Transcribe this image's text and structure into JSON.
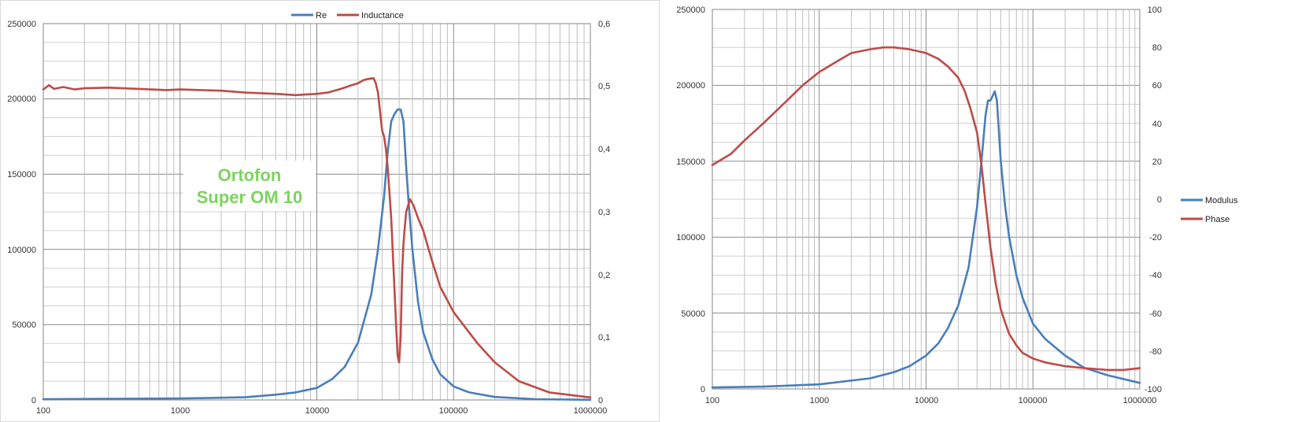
{
  "colors": {
    "re": "#4a7ebb",
    "inductance": "#be4b48",
    "modulus": "#4a7ebb",
    "phase": "#be4b48"
  },
  "chart_data": [
    {
      "type": "line",
      "x_scale": "log",
      "xlim": [
        100,
        1000000
      ],
      "ylim": [
        0,
        250000
      ],
      "y2lim": [
        0,
        0.6
      ],
      "grid": true,
      "legend_position": "top",
      "x_tick_labels": [
        "100",
        "1000",
        "10000",
        "100000",
        "1000000"
      ],
      "y_tick_labels": [
        "0",
        "50000",
        "100000",
        "150000",
        "200000",
        "250000"
      ],
      "y2_tick_labels": [
        "0",
        "0,1",
        "0,2",
        "0,3",
        "0,4",
        "0,5",
        "0,6"
      ],
      "annotation": [
        "Ortofon",
        "Super OM 10"
      ],
      "series": [
        {
          "name": "Re",
          "axis": "left",
          "x": [
            100,
            300,
            1000,
            3000,
            5000,
            7000,
            10000,
            13000,
            16000,
            20000,
            25000,
            28000,
            31000,
            33000,
            35000,
            37000,
            39000,
            41000,
            43000,
            45000,
            47000,
            50000,
            55000,
            60000,
            70000,
            80000,
            100000,
            130000,
            200000,
            400000,
            1000000
          ],
          "y": [
            500,
            800,
            1000,
            1800,
            3500,
            5000,
            8000,
            14000,
            22000,
            38000,
            70000,
            100000,
            135000,
            165000,
            185000,
            190000,
            193000,
            193000,
            185000,
            155000,
            130000,
            100000,
            65000,
            45000,
            27000,
            17000,
            9000,
            5000,
            2000,
            500,
            100
          ]
        },
        {
          "name": "Inductance",
          "axis": "right",
          "x": [
            100,
            110,
            120,
            140,
            170,
            200,
            300,
            500,
            800,
            1000,
            2000,
            3000,
            5000,
            7000,
            10000,
            12000,
            15000,
            18000,
            20000,
            22000,
            24000,
            26000,
            27000,
            28000,
            29000,
            30000,
            31000,
            32000,
            33000,
            34000,
            35000,
            36000,
            38000,
            39000,
            40000,
            41000,
            42000,
            43000,
            45000,
            48000,
            51000,
            55000,
            60000,
            70000,
            80000,
            100000,
            150000,
            200000,
            300000,
            500000,
            1000000
          ],
          "y": [
            0.495,
            0.502,
            0.496,
            0.499,
            0.495,
            0.497,
            0.498,
            0.496,
            0.494,
            0.495,
            0.493,
            0.49,
            0.488,
            0.486,
            0.488,
            0.49,
            0.496,
            0.502,
            0.505,
            0.51,
            0.512,
            0.513,
            0.505,
            0.49,
            0.46,
            0.43,
            0.42,
            0.4,
            0.37,
            0.33,
            0.29,
            0.23,
            0.12,
            0.07,
            0.06,
            0.1,
            0.2,
            0.25,
            0.3,
            0.32,
            0.31,
            0.29,
            0.27,
            0.22,
            0.18,
            0.14,
            0.09,
            0.06,
            0.03,
            0.012,
            0.004
          ]
        }
      ]
    },
    {
      "type": "line",
      "x_scale": "log",
      "xlim": [
        100,
        1000000
      ],
      "ylim": [
        0,
        250000
      ],
      "y2lim": [
        -100,
        100
      ],
      "grid": true,
      "legend_position": "right",
      "x_tick_labels": [
        "100",
        "1000",
        "10000",
        "100000",
        "1000000"
      ],
      "y_tick_labels": [
        "0",
        "50000",
        "100000",
        "150000",
        "200000",
        "250000"
      ],
      "y2_tick_labels": [
        "-100",
        "-80",
        "-60",
        "-40",
        "-20",
        "0",
        "20",
        "40",
        "60",
        "80",
        "100"
      ],
      "series": [
        {
          "name": "Modulus",
          "axis": "left",
          "x": [
            100,
            300,
            1000,
            3000,
            5000,
            7000,
            10000,
            13000,
            16000,
            20000,
            25000,
            30000,
            33000,
            36000,
            38000,
            40000,
            42000,
            44000,
            46000,
            48000,
            50000,
            55000,
            60000,
            70000,
            80000,
            100000,
            130000,
            200000,
            300000,
            500000,
            1000000
          ],
          "y": [
            1000,
            1500,
            3000,
            7000,
            11000,
            15000,
            22000,
            30000,
            40000,
            55000,
            80000,
            120000,
            150000,
            180000,
            190000,
            190000,
            193000,
            196000,
            190000,
            170000,
            150000,
            120000,
            100000,
            75000,
            60000,
            43000,
            33000,
            22000,
            14000,
            9000,
            4000
          ]
        },
        {
          "name": "Phase",
          "axis": "right",
          "x": [
            100,
            150,
            200,
            300,
            500,
            700,
            1000,
            1500,
            2000,
            3000,
            4000,
            5000,
            7000,
            10000,
            13000,
            16000,
            20000,
            23000,
            26000,
            30000,
            33000,
            36000,
            40000,
            45000,
            50000,
            55000,
            60000,
            70000,
            80000,
            100000,
            130000,
            200000,
            300000,
            500000,
            700000,
            1000000
          ],
          "y": [
            18,
            24,
            31,
            40,
            52,
            60,
            67,
            73,
            77,
            79,
            80,
            80,
            79,
            77,
            74,
            70,
            64,
            57,
            48,
            35,
            18,
            -2,
            -25,
            -45,
            -58,
            -65,
            -71,
            -77,
            -81,
            -84,
            -86,
            -88,
            -89,
            -90,
            -90,
            -89
          ]
        }
      ]
    }
  ]
}
